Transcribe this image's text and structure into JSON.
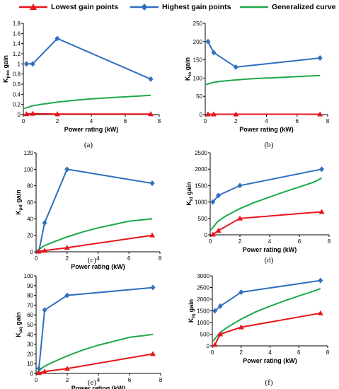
{
  "legend": [
    {
      "name": "Lowest gain points",
      "color": "#e8141c",
      "marker": "triangle"
    },
    {
      "name": "Highest gain points",
      "color": "#2e6fc0",
      "marker": "diamond"
    },
    {
      "name": "Generalized curve",
      "color": "#1ea84b",
      "marker": "none"
    }
  ],
  "chart_data": [
    {
      "type": "line",
      "panel_label": "(a)",
      "title": "",
      "xlabel": "Power rating (kW)",
      "ylabel_main": "K",
      "ylabel_sub": "pvo",
      "ylabel_tail": " gain",
      "xlim": [
        0,
        8
      ],
      "xticks": [
        0,
        2,
        4,
        6,
        8
      ],
      "ylim": [
        0,
        1.8
      ],
      "yticks": [
        "0",
        "0.2",
        "0.4",
        "0.6",
        "0.8",
        "1",
        "1.2",
        "1.4",
        "1.6",
        "1.8"
      ],
      "series": [
        {
          "name": "Lowest gain points",
          "x": [
            0.18,
            0.55,
            2,
            7.5
          ],
          "y": [
            0.01,
            0.02,
            0.01,
            0.01
          ]
        },
        {
          "name": "Highest gain points",
          "x": [
            0.18,
            0.55,
            2,
            7.5
          ],
          "y": [
            1.0,
            1.0,
            1.5,
            0.7
          ]
        },
        {
          "name": "Generalized curve",
          "x": [
            0.05,
            0.5,
            1,
            2,
            3,
            4,
            5,
            6,
            7,
            7.5
          ],
          "y": [
            0.12,
            0.17,
            0.2,
            0.245,
            0.28,
            0.31,
            0.33,
            0.35,
            0.37,
            0.38
          ]
        }
      ]
    },
    {
      "type": "line",
      "panel_label": "(b)",
      "title": "",
      "xlabel": "Power rating (kW)",
      "ylabel_main": "K",
      "ylabel_sub": "io",
      "ylabel_tail": " gain",
      "xlim": [
        0,
        8
      ],
      "xticks": [
        0,
        2,
        4,
        6,
        8
      ],
      "ylim": [
        0,
        250
      ],
      "yticks": [
        "0",
        "50",
        "100",
        "150",
        "200",
        "250"
      ],
      "series": [
        {
          "name": "Lowest gain points",
          "x": [
            0.18,
            0.55,
            2,
            7.5
          ],
          "y": [
            1,
            1,
            1,
            1
          ]
        },
        {
          "name": "Highest gain points",
          "x": [
            0.18,
            0.55,
            2,
            7.5
          ],
          "y": [
            200,
            170,
            130,
            155
          ]
        },
        {
          "name": "Generalized curve",
          "x": [
            0.05,
            0.5,
            1,
            2,
            3,
            4,
            5,
            6,
            7,
            7.5
          ],
          "y": [
            82,
            88,
            91,
            95,
            98,
            100,
            102,
            104,
            106,
            107
          ]
        }
      ]
    },
    {
      "type": "line",
      "panel_label": "(c)",
      "title": "",
      "xlabel": "Power rating (kW)",
      "ylabel_main": "K",
      "ylabel_sub": "pd",
      "ylabel_tail": " gain",
      "xlim": [
        0,
        8
      ],
      "xticks": [
        0,
        2,
        4,
        6,
        8
      ],
      "ylim": [
        0,
        120
      ],
      "yticks": [
        "0",
        "20",
        "40",
        "60",
        "80",
        "100",
        "120"
      ],
      "series": [
        {
          "name": "Lowest gain points",
          "x": [
            0.18,
            0.55,
            2,
            7.5
          ],
          "y": [
            0.5,
            1.5,
            5,
            20
          ]
        },
        {
          "name": "Highest gain points",
          "x": [
            0.18,
            0.55,
            2,
            7.5
          ],
          "y": [
            0.5,
            35,
            100,
            83
          ]
        },
        {
          "name": "Generalized curve",
          "x": [
            0.05,
            0.5,
            1,
            2,
            3,
            4,
            5,
            6,
            7,
            7.5
          ],
          "y": [
            1,
            7,
            11,
            18,
            24,
            29,
            33,
            37,
            39,
            40
          ]
        }
      ]
    },
    {
      "type": "line",
      "panel_label": "(d)",
      "title": "",
      "xlabel": "Power rating (kW)",
      "ylabel_main": "K",
      "ylabel_sub": "id",
      "ylabel_tail": " gain",
      "xlim": [
        0,
        8
      ],
      "xticks": [
        0,
        2,
        4,
        6,
        8
      ],
      "ylim": [
        0,
        2500
      ],
      "yticks": [
        "0",
        "500",
        "1000",
        "1500",
        "2000",
        "2500"
      ],
      "series": [
        {
          "name": "Lowest gain points",
          "x": [
            0.18,
            0.55,
            2,
            7.5
          ],
          "y": [
            10,
            130,
            500,
            700
          ]
        },
        {
          "name": "Highest gain points",
          "x": [
            0.18,
            0.55,
            2,
            7.5
          ],
          "y": [
            1000,
            1200,
            1500,
            2000
          ]
        },
        {
          "name": "Generalized curve",
          "x": [
            0.05,
            0.5,
            1,
            2,
            3,
            4,
            5,
            6,
            7,
            7.5
          ],
          "y": [
            150,
            400,
            560,
            800,
            990,
            1150,
            1310,
            1460,
            1610,
            1730
          ]
        }
      ]
    },
    {
      "type": "line",
      "panel_label": "(e)",
      "title": "",
      "xlabel": "Power rating (kW)",
      "ylabel_main": "K",
      "ylabel_sub": "pq",
      "ylabel_tail": " gain",
      "xlim": [
        0,
        8
      ],
      "xticks": [
        0,
        2,
        4,
        6,
        8
      ],
      "ylim": [
        0,
        100
      ],
      "yticks": [
        "0",
        "10",
        "20",
        "30",
        "40",
        "50",
        "60",
        "70",
        "80",
        "90",
        "100"
      ],
      "series": [
        {
          "name": "Lowest gain points",
          "x": [
            0.18,
            0.55,
            2,
            7.5
          ],
          "y": [
            0.5,
            2,
            5,
            20
          ]
        },
        {
          "name": "Highest gain points",
          "x": [
            0.18,
            0.55,
            2,
            7.5
          ],
          "y": [
            5,
            65,
            80,
            88
          ]
        },
        {
          "name": "Generalized curve",
          "x": [
            0.05,
            0.5,
            1,
            2,
            3,
            4,
            5,
            6,
            7,
            7.5
          ],
          "y": [
            1,
            7,
            11,
            18,
            24,
            29,
            33,
            37,
            39,
            40
          ]
        }
      ]
    },
    {
      "type": "line",
      "panel_label": "(f)",
      "title": "",
      "xlabel": "Power rating (kW)",
      "ylabel_main": "K",
      "ylabel_sub": "iq",
      "ylabel_tail": " gain",
      "xlim": [
        0,
        8
      ],
      "xticks": [
        0,
        2,
        4,
        6,
        8
      ],
      "ylim": [
        0,
        3000
      ],
      "yticks": [
        "0",
        "500",
        "1000",
        "1500",
        "2000",
        "2500",
        "3000"
      ],
      "series": [
        {
          "name": "Lowest gain points",
          "x": [
            0.18,
            0.55,
            2,
            7.5
          ],
          "y": [
            50,
            500,
            800,
            1400
          ]
        },
        {
          "name": "Highest gain points",
          "x": [
            0.18,
            0.55,
            2,
            7.5
          ],
          "y": [
            1500,
            1700,
            2300,
            2800
          ]
        },
        {
          "name": "Generalized curve",
          "x": [
            0.05,
            0.5,
            1,
            2,
            3,
            4,
            5,
            6,
            7,
            7.5
          ],
          "y": [
            200,
            550,
            780,
            1150,
            1450,
            1700,
            1930,
            2140,
            2340,
            2450
          ]
        }
      ]
    }
  ]
}
